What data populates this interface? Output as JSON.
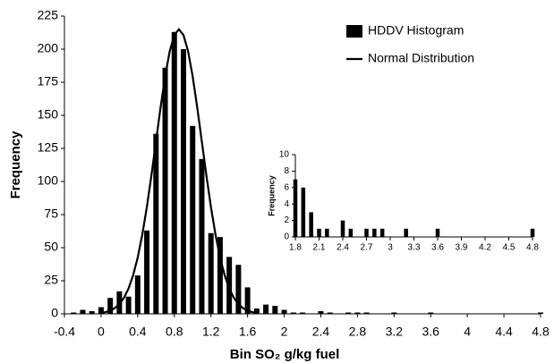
{
  "chart_data": [
    {
      "type": "bar",
      "xlabel": "Bin SO₂ g/kg fuel",
      "ylabel": "Frequency",
      "xlim": [
        -0.4,
        4.8
      ],
      "xticks": [
        -0.4,
        0,
        0.4,
        0.8,
        1.2,
        1.6,
        2,
        2.4,
        2.8,
        3.2,
        3.6,
        4,
        4.4,
        4.8
      ],
      "ylim": [
        0,
        225
      ],
      "yticks": [
        0,
        25,
        50,
        75,
        100,
        125,
        150,
        175,
        200,
        225
      ],
      "legend": "upper-right",
      "series": [
        {
          "name": "HDDV Histogram",
          "type": "bar",
          "color": "#000000",
          "x": [
            -0.3,
            -0.2,
            -0.1,
            0,
            0.1,
            0.2,
            0.3,
            0.4,
            0.5,
            0.6,
            0.7,
            0.8,
            0.9,
            1,
            1.1,
            1.2,
            1.3,
            1.4,
            1.5,
            1.6,
            1.7,
            1.8,
            1.9,
            2,
            2.1,
            2.2,
            2.3,
            2.4,
            2.5,
            2.6,
            2.7,
            2.8,
            2.9,
            3,
            3.1,
            3.2,
            3.3,
            3.4,
            3.5,
            3.6,
            3.7,
            3.8,
            3.9,
            4,
            4.1,
            4.2,
            4.3,
            4.4,
            4.5,
            4.6,
            4.7,
            4.8
          ],
          "values": [
            1,
            3,
            2,
            5,
            12,
            17,
            13,
            29,
            63,
            136,
            186,
            213,
            200,
            142,
            117,
            61,
            58,
            43,
            37,
            20,
            4,
            7,
            6,
            3,
            1,
            1,
            0,
            2,
            1,
            0,
            1,
            1,
            1,
            0,
            0,
            1,
            0,
            0,
            0,
            1,
            0,
            0,
            0,
            0,
            0,
            0,
            0,
            0,
            0,
            0,
            0,
            1
          ]
        },
        {
          "name": "Normal Distribution",
          "type": "line",
          "color": "#000000",
          "x": [
            0,
            0.05,
            0.1,
            0.15,
            0.2,
            0.25,
            0.3,
            0.35,
            0.4,
            0.45,
            0.5,
            0.55,
            0.6,
            0.65,
            0.7,
            0.75,
            0.8,
            0.85,
            0.9,
            0.95,
            1,
            1.05,
            1.1,
            1.15,
            1.2,
            1.25,
            1.3,
            1.35,
            1.4,
            1.45,
            1.5,
            1.55,
            1.6,
            1.65,
            1.7
          ],
          "values": [
            0.7,
            1.3,
            2.4,
            4.3,
            7.3,
            12.1,
            19.1,
            29.1,
            42.5,
            59.8,
            80.7,
            104.7,
            130.4,
            156.1,
            179.6,
            198.5,
            210.7,
            215,
            210.7,
            198.5,
            179.6,
            156.1,
            130.4,
            104.7,
            80.7,
            59.8,
            42.5,
            29.1,
            19.1,
            12.1,
            7.3,
            4.3,
            2.4,
            1.3,
            0.7
          ]
        }
      ]
    },
    {
      "type": "bar",
      "ylabel": "Frequency",
      "xlim": [
        1.8,
        4.8
      ],
      "xticks": [
        1.8,
        2.1,
        2.4,
        2.7,
        3,
        3.3,
        3.6,
        3.9,
        4.2,
        4.5,
        4.8
      ],
      "ylim": [
        0,
        10
      ],
      "yticks": [
        0,
        2,
        4,
        6,
        8,
        10
      ],
      "series": [
        {
          "type": "bar",
          "color": "#000000",
          "x": [
            1.8,
            1.9,
            2,
            2.1,
            2.2,
            2.3,
            2.4,
            2.5,
            2.6,
            2.7,
            2.8,
            2.9,
            3,
            3.1,
            3.2,
            3.3,
            3.4,
            3.5,
            3.6,
            3.7,
            3.8,
            3.9,
            4,
            4.1,
            4.2,
            4.3,
            4.4,
            4.5,
            4.6,
            4.7,
            4.8
          ],
          "values": [
            7,
            6,
            3,
            1,
            1,
            0,
            2,
            1,
            0,
            1,
            1,
            1,
            0,
            0,
            1,
            0,
            0,
            0,
            1,
            0,
            0,
            0,
            0,
            0,
            0,
            0,
            0,
            0,
            0,
            0,
            1
          ]
        }
      ]
    }
  ]
}
